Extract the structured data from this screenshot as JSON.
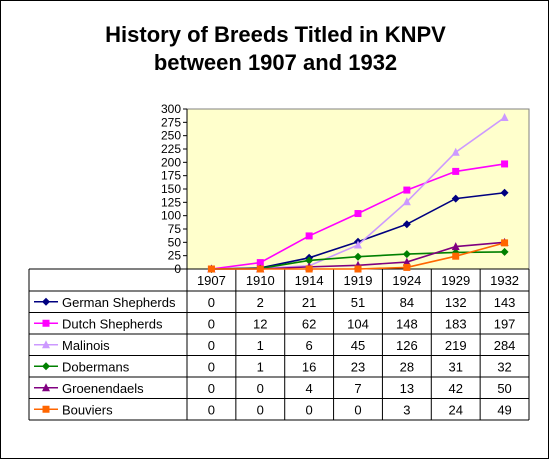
{
  "chart_data": {
    "type": "line",
    "title": "History of Breeds Titled in KNPV",
    "subtitle": "between 1907 and 1932",
    "categories": [
      "1907",
      "1910",
      "1914",
      "1919",
      "1924",
      "1929",
      "1932"
    ],
    "ylim": [
      0,
      300
    ],
    "yticks": [
      0,
      25,
      50,
      75,
      100,
      125,
      150,
      175,
      200,
      225,
      250,
      275,
      300
    ],
    "grid": false,
    "legend": "data-table",
    "plot_background": "#FFFFCC",
    "series": [
      {
        "name": "German Shepherds",
        "values": [
          0,
          2,
          21,
          51,
          84,
          132,
          143
        ],
        "color": "#000080",
        "marker": "diamond"
      },
      {
        "name": "Dutch Shepherds",
        "values": [
          0,
          12,
          62,
          104,
          148,
          183,
          197
        ],
        "color": "#FF00FF",
        "marker": "square"
      },
      {
        "name": "Malinois",
        "values": [
          0,
          1,
          6,
          45,
          126,
          219,
          284
        ],
        "color": "#CC99FF",
        "marker": "triangle"
      },
      {
        "name": "Dobermans",
        "values": [
          0,
          1,
          16,
          23,
          28,
          31,
          32
        ],
        "color": "#008000",
        "marker": "diamond"
      },
      {
        "name": "Groenendaels",
        "values": [
          0,
          0,
          4,
          7,
          13,
          42,
          50
        ],
        "color": "#800080",
        "marker": "triangle"
      },
      {
        "name": "Bouviers",
        "values": [
          0,
          0,
          0,
          0,
          3,
          24,
          49
        ],
        "color": "#FF6600",
        "marker": "square"
      }
    ]
  }
}
